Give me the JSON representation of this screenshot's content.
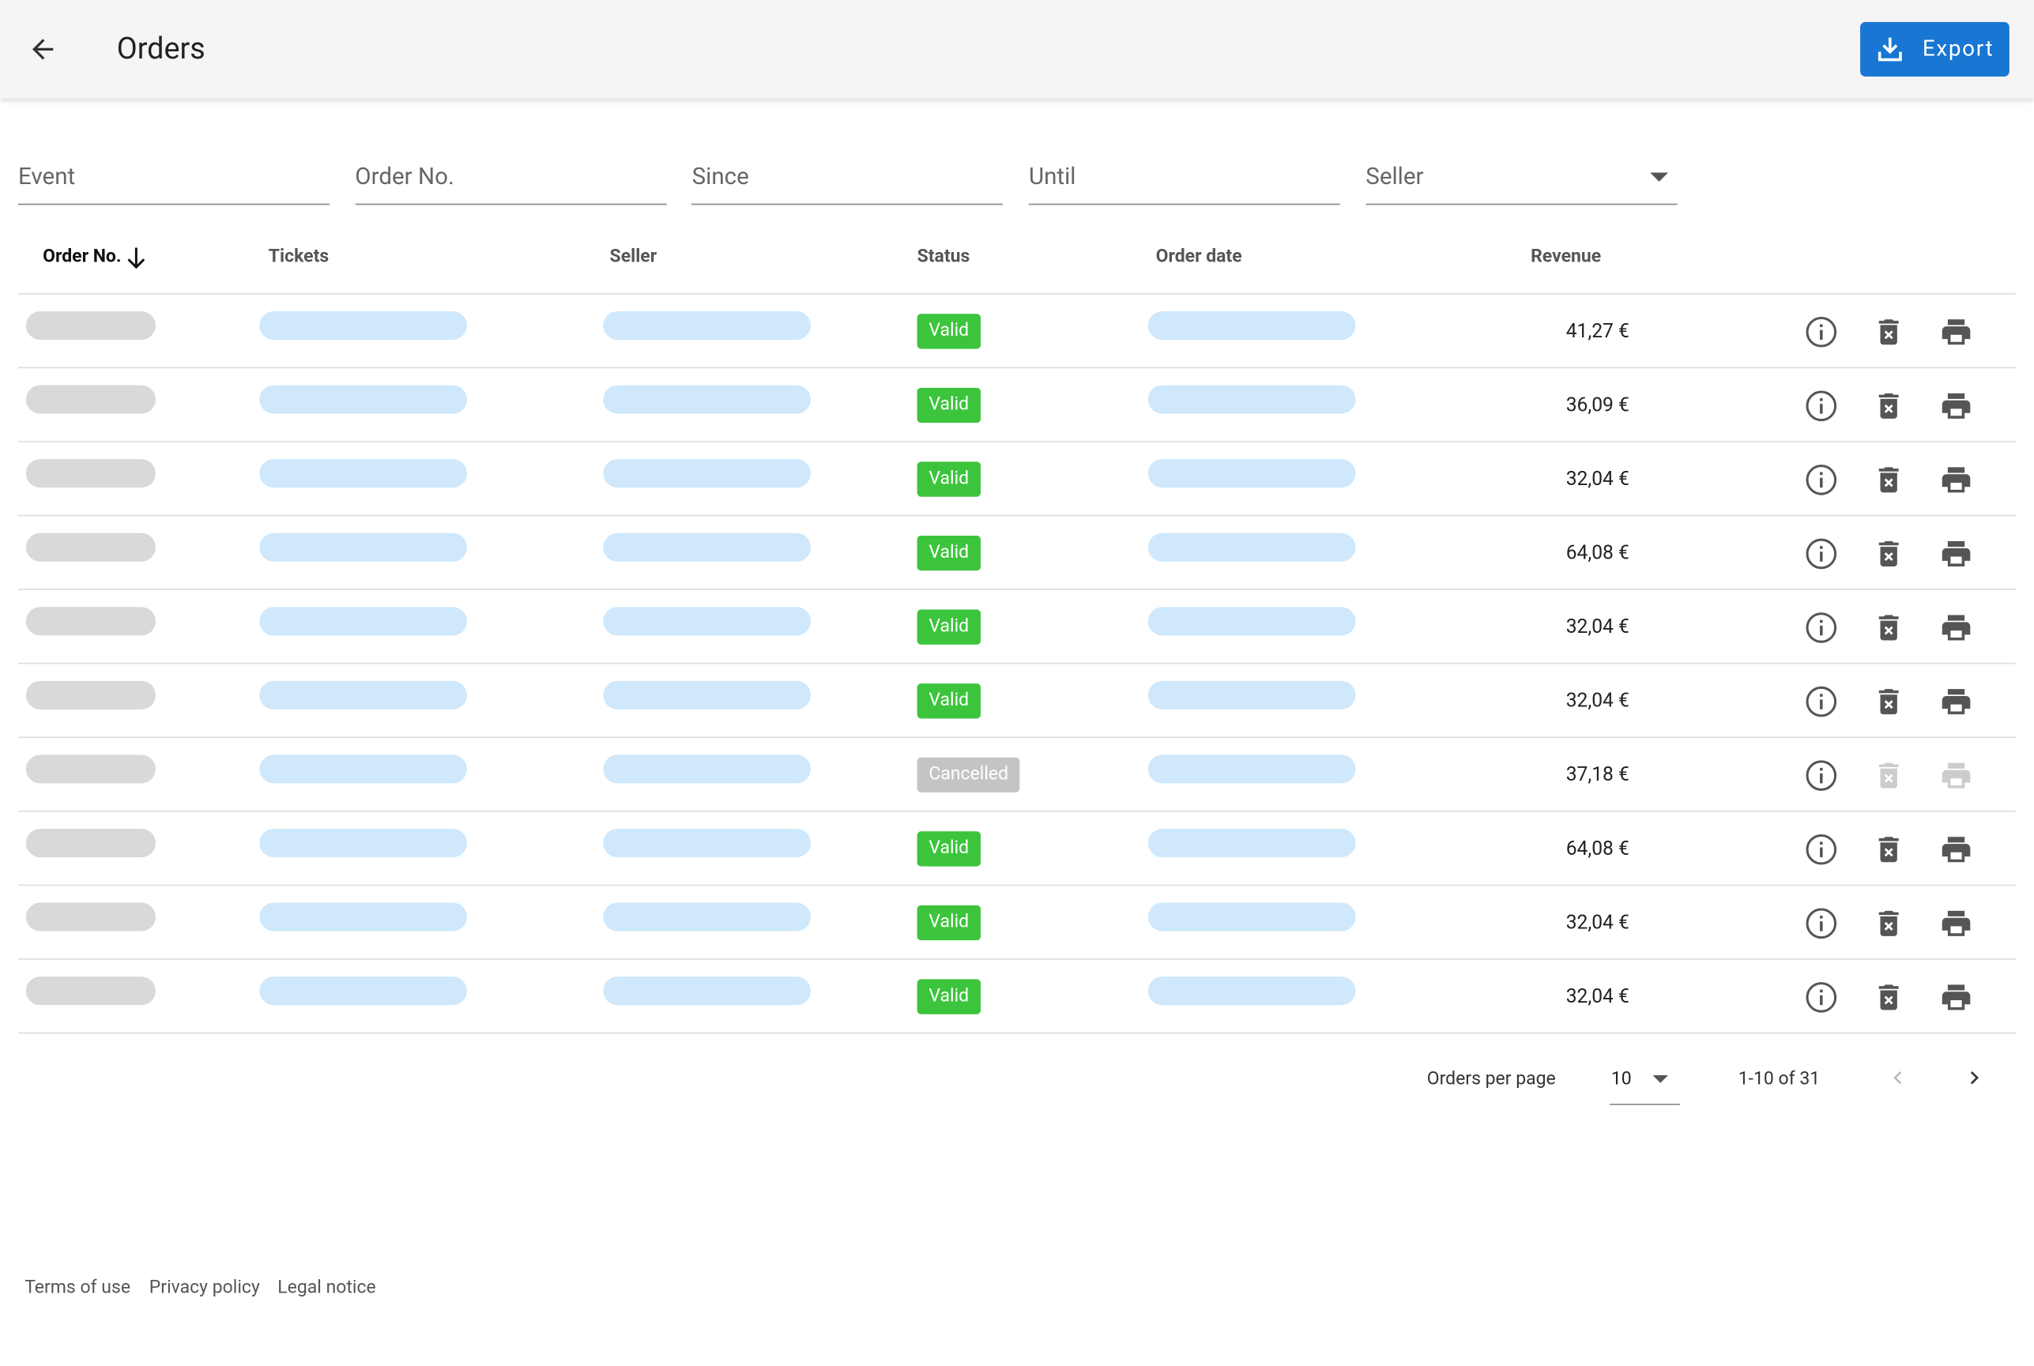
{
  "header": {
    "title": "Orders",
    "export_button": "Export"
  },
  "filters": [
    "Event",
    "Order No.",
    "Since",
    "Until",
    "Seller"
  ],
  "table": {
    "columns": [
      "Order No.",
      "Tickets",
      "Seller",
      "Status",
      "Order date",
      "Revenue"
    ],
    "rows": [
      {
        "status": "Valid",
        "status_color": "#3dc43d",
        "revenue": "41,27 €"
      },
      {
        "status": "Valid",
        "status_color": "#3dc43d",
        "revenue": "36,09 €"
      },
      {
        "status": "Valid",
        "status_color": "#3dc43d",
        "revenue": "32,04 €"
      },
      {
        "status": "Valid",
        "status_color": "#3dc43d",
        "revenue": "64,08 €"
      },
      {
        "status": "Valid",
        "status_color": "#3dc43d",
        "revenue": "32,04 €"
      },
      {
        "status": "Valid",
        "status_color": "#3dc43d",
        "revenue": "32,04 €"
      },
      {
        "status": "Cancelled",
        "status_color": "#c4c4c4",
        "revenue": "37,18 €"
      },
      {
        "status": "Valid",
        "status_color": "#3dc43d",
        "revenue": "64,08 €"
      },
      {
        "status": "Valid",
        "status_color": "#3dc43d",
        "revenue": "32,04 €"
      },
      {
        "status": "Valid",
        "status_color": "#3dc43d",
        "revenue": "32,04 €"
      }
    ]
  },
  "pagination": {
    "label": "Orders per page",
    "per_page": "10",
    "range": "1-10 of 31"
  },
  "footer": [
    "Terms of use",
    "Privacy policy",
    "Legal notice"
  ]
}
